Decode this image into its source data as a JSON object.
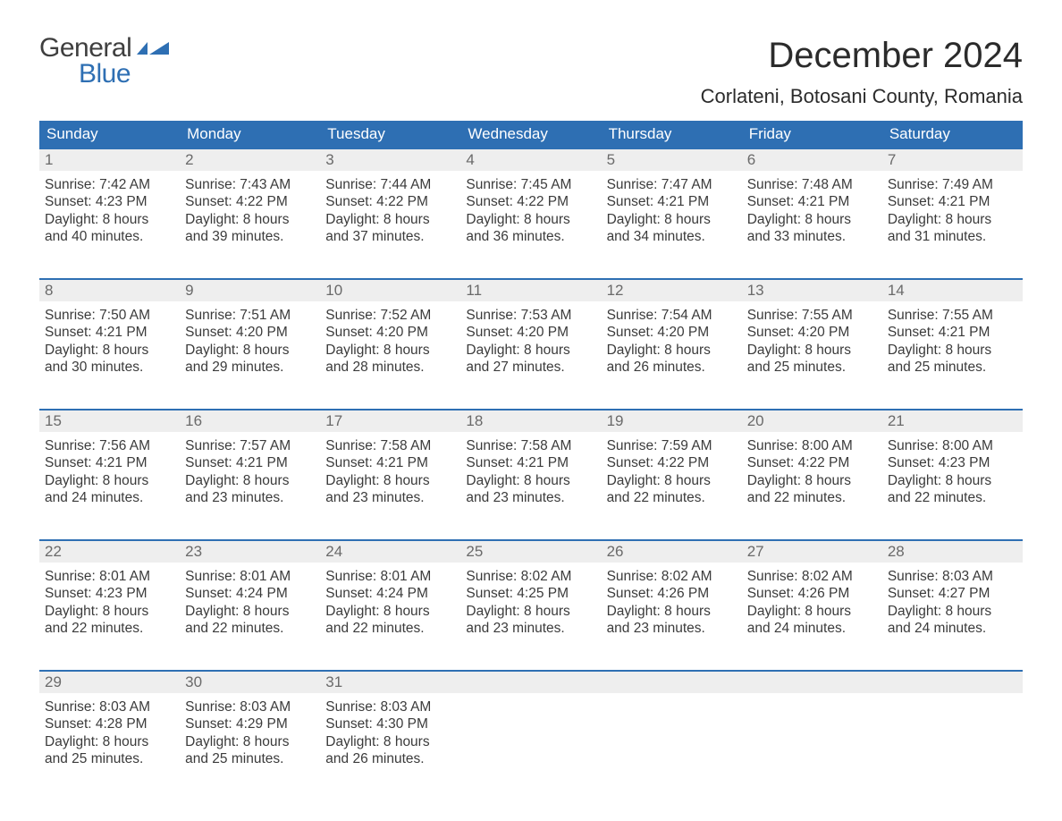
{
  "logo": {
    "top": "General",
    "bottom": "Blue"
  },
  "title": "December 2024",
  "location": "Corlateni, Botosani County, Romania",
  "day_names": [
    "Sunday",
    "Monday",
    "Tuesday",
    "Wednesday",
    "Thursday",
    "Friday",
    "Saturday"
  ],
  "colors": {
    "header_bg": "#2e6fb3",
    "header_text": "#ffffff",
    "date_bg": "#eeeeee",
    "date_text": "#6a6a6a",
    "body_text": "#3b3b3b",
    "week_border": "#2e6fb3",
    "page_bg": "#ffffff"
  },
  "weeks": [
    [
      {
        "date": "1",
        "sunrise": "Sunrise: 7:42 AM",
        "sunset": "Sunset: 4:23 PM",
        "dl1": "Daylight: 8 hours",
        "dl2": "and 40 minutes."
      },
      {
        "date": "2",
        "sunrise": "Sunrise: 7:43 AM",
        "sunset": "Sunset: 4:22 PM",
        "dl1": "Daylight: 8 hours",
        "dl2": "and 39 minutes."
      },
      {
        "date": "3",
        "sunrise": "Sunrise: 7:44 AM",
        "sunset": "Sunset: 4:22 PM",
        "dl1": "Daylight: 8 hours",
        "dl2": "and 37 minutes."
      },
      {
        "date": "4",
        "sunrise": "Sunrise: 7:45 AM",
        "sunset": "Sunset: 4:22 PM",
        "dl1": "Daylight: 8 hours",
        "dl2": "and 36 minutes."
      },
      {
        "date": "5",
        "sunrise": "Sunrise: 7:47 AM",
        "sunset": "Sunset: 4:21 PM",
        "dl1": "Daylight: 8 hours",
        "dl2": "and 34 minutes."
      },
      {
        "date": "6",
        "sunrise": "Sunrise: 7:48 AM",
        "sunset": "Sunset: 4:21 PM",
        "dl1": "Daylight: 8 hours",
        "dl2": "and 33 minutes."
      },
      {
        "date": "7",
        "sunrise": "Sunrise: 7:49 AM",
        "sunset": "Sunset: 4:21 PM",
        "dl1": "Daylight: 8 hours",
        "dl2": "and 31 minutes."
      }
    ],
    [
      {
        "date": "8",
        "sunrise": "Sunrise: 7:50 AM",
        "sunset": "Sunset: 4:21 PM",
        "dl1": "Daylight: 8 hours",
        "dl2": "and 30 minutes."
      },
      {
        "date": "9",
        "sunrise": "Sunrise: 7:51 AM",
        "sunset": "Sunset: 4:20 PM",
        "dl1": "Daylight: 8 hours",
        "dl2": "and 29 minutes."
      },
      {
        "date": "10",
        "sunrise": "Sunrise: 7:52 AM",
        "sunset": "Sunset: 4:20 PM",
        "dl1": "Daylight: 8 hours",
        "dl2": "and 28 minutes."
      },
      {
        "date": "11",
        "sunrise": "Sunrise: 7:53 AM",
        "sunset": "Sunset: 4:20 PM",
        "dl1": "Daylight: 8 hours",
        "dl2": "and 27 minutes."
      },
      {
        "date": "12",
        "sunrise": "Sunrise: 7:54 AM",
        "sunset": "Sunset: 4:20 PM",
        "dl1": "Daylight: 8 hours",
        "dl2": "and 26 minutes."
      },
      {
        "date": "13",
        "sunrise": "Sunrise: 7:55 AM",
        "sunset": "Sunset: 4:20 PM",
        "dl1": "Daylight: 8 hours",
        "dl2": "and 25 minutes."
      },
      {
        "date": "14",
        "sunrise": "Sunrise: 7:55 AM",
        "sunset": "Sunset: 4:21 PM",
        "dl1": "Daylight: 8 hours",
        "dl2": "and 25 minutes."
      }
    ],
    [
      {
        "date": "15",
        "sunrise": "Sunrise: 7:56 AM",
        "sunset": "Sunset: 4:21 PM",
        "dl1": "Daylight: 8 hours",
        "dl2": "and 24 minutes."
      },
      {
        "date": "16",
        "sunrise": "Sunrise: 7:57 AM",
        "sunset": "Sunset: 4:21 PM",
        "dl1": "Daylight: 8 hours",
        "dl2": "and 23 minutes."
      },
      {
        "date": "17",
        "sunrise": "Sunrise: 7:58 AM",
        "sunset": "Sunset: 4:21 PM",
        "dl1": "Daylight: 8 hours",
        "dl2": "and 23 minutes."
      },
      {
        "date": "18",
        "sunrise": "Sunrise: 7:58 AM",
        "sunset": "Sunset: 4:21 PM",
        "dl1": "Daylight: 8 hours",
        "dl2": "and 23 minutes."
      },
      {
        "date": "19",
        "sunrise": "Sunrise: 7:59 AM",
        "sunset": "Sunset: 4:22 PM",
        "dl1": "Daylight: 8 hours",
        "dl2": "and 22 minutes."
      },
      {
        "date": "20",
        "sunrise": "Sunrise: 8:00 AM",
        "sunset": "Sunset: 4:22 PM",
        "dl1": "Daylight: 8 hours",
        "dl2": "and 22 minutes."
      },
      {
        "date": "21",
        "sunrise": "Sunrise: 8:00 AM",
        "sunset": "Sunset: 4:23 PM",
        "dl1": "Daylight: 8 hours",
        "dl2": "and 22 minutes."
      }
    ],
    [
      {
        "date": "22",
        "sunrise": "Sunrise: 8:01 AM",
        "sunset": "Sunset: 4:23 PM",
        "dl1": "Daylight: 8 hours",
        "dl2": "and 22 minutes."
      },
      {
        "date": "23",
        "sunrise": "Sunrise: 8:01 AM",
        "sunset": "Sunset: 4:24 PM",
        "dl1": "Daylight: 8 hours",
        "dl2": "and 22 minutes."
      },
      {
        "date": "24",
        "sunrise": "Sunrise: 8:01 AM",
        "sunset": "Sunset: 4:24 PM",
        "dl1": "Daylight: 8 hours",
        "dl2": "and 22 minutes."
      },
      {
        "date": "25",
        "sunrise": "Sunrise: 8:02 AM",
        "sunset": "Sunset: 4:25 PM",
        "dl1": "Daylight: 8 hours",
        "dl2": "and 23 minutes."
      },
      {
        "date": "26",
        "sunrise": "Sunrise: 8:02 AM",
        "sunset": "Sunset: 4:26 PM",
        "dl1": "Daylight: 8 hours",
        "dl2": "and 23 minutes."
      },
      {
        "date": "27",
        "sunrise": "Sunrise: 8:02 AM",
        "sunset": "Sunset: 4:26 PM",
        "dl1": "Daylight: 8 hours",
        "dl2": "and 24 minutes."
      },
      {
        "date": "28",
        "sunrise": "Sunrise: 8:03 AM",
        "sunset": "Sunset: 4:27 PM",
        "dl1": "Daylight: 8 hours",
        "dl2": "and 24 minutes."
      }
    ],
    [
      {
        "date": "29",
        "sunrise": "Sunrise: 8:03 AM",
        "sunset": "Sunset: 4:28 PM",
        "dl1": "Daylight: 8 hours",
        "dl2": "and 25 minutes."
      },
      {
        "date": "30",
        "sunrise": "Sunrise: 8:03 AM",
        "sunset": "Sunset: 4:29 PM",
        "dl1": "Daylight: 8 hours",
        "dl2": "and 25 minutes."
      },
      {
        "date": "31",
        "sunrise": "Sunrise: 8:03 AM",
        "sunset": "Sunset: 4:30 PM",
        "dl1": "Daylight: 8 hours",
        "dl2": "and 26 minutes."
      },
      null,
      null,
      null,
      null
    ]
  ]
}
